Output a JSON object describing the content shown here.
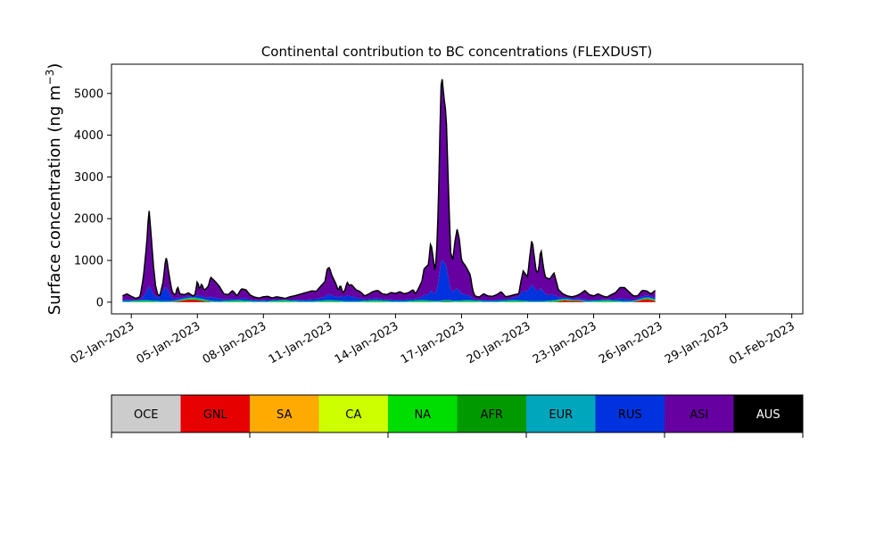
{
  "chart_data": {
    "type": "area",
    "title": "Continental contribution to BC concentrations (FLEXDUST)",
    "ylabel_main": "Surface concentration (ng m",
    "ylabel_sup": "−3",
    "ylabel_close": ")",
    "xlabel": "",
    "ylim": [
      -280,
      5700
    ],
    "yticks": [
      0,
      1000,
      2000,
      3000,
      4000,
      5000
    ],
    "x_start_day": 1.1,
    "x_end_day": 32.5,
    "xticks": [
      {
        "day": 2,
        "label": "02-Jan-2023"
      },
      {
        "day": 5,
        "label": "05-Jan-2023"
      },
      {
        "day": 8,
        "label": "08-Jan-2023"
      },
      {
        "day": 11,
        "label": "11-Jan-2023"
      },
      {
        "day": 14,
        "label": "14-Jan-2023"
      },
      {
        "day": 17,
        "label": "17-Jan-2023"
      },
      {
        "day": 20,
        "label": "20-Jan-2023"
      },
      {
        "day": 23,
        "label": "23-Jan-2023"
      },
      {
        "day": 26,
        "label": "26-Jan-2023"
      },
      {
        "day": 29,
        "label": "29-Jan-2023"
      },
      {
        "day": 32,
        "label": "01-Feb-2023"
      }
    ],
    "total_series": [
      [
        1.6,
        150
      ],
      [
        1.8,
        200
      ],
      [
        2.0,
        140
      ],
      [
        2.2,
        90
      ],
      [
        2.4,
        130
      ],
      [
        2.55,
        600
      ],
      [
        2.7,
        1400
      ],
      [
        2.8,
        2250
      ],
      [
        2.9,
        1600
      ],
      [
        3.0,
        900
      ],
      [
        3.1,
        400
      ],
      [
        3.2,
        180
      ],
      [
        3.3,
        160
      ],
      [
        3.45,
        500
      ],
      [
        3.55,
        1000
      ],
      [
        3.6,
        1080
      ],
      [
        3.7,
        700
      ],
      [
        3.85,
        250
      ],
      [
        4.0,
        160
      ],
      [
        4.1,
        380
      ],
      [
        4.2,
        200
      ],
      [
        4.4,
        180
      ],
      [
        4.6,
        220
      ],
      [
        4.8,
        150
      ],
      [
        4.9,
        180
      ],
      [
        5.0,
        520
      ],
      [
        5.1,
        300
      ],
      [
        5.2,
        450
      ],
      [
        5.3,
        280
      ],
      [
        5.5,
        380
      ],
      [
        5.6,
        600
      ],
      [
        5.8,
        500
      ],
      [
        6.0,
        380
      ],
      [
        6.2,
        200
      ],
      [
        6.4,
        180
      ],
      [
        6.6,
        280
      ],
      [
        6.8,
        150
      ],
      [
        7.0,
        320
      ],
      [
        7.2,
        300
      ],
      [
        7.4,
        170
      ],
      [
        7.6,
        120
      ],
      [
        7.8,
        100
      ],
      [
        8.0,
        130
      ],
      [
        8.2,
        140
      ],
      [
        8.4,
        100
      ],
      [
        8.6,
        130
      ],
      [
        8.8,
        110
      ],
      [
        9.0,
        90
      ],
      [
        9.2,
        130
      ],
      [
        9.4,
        150
      ],
      [
        9.6,
        180
      ],
      [
        9.8,
        210
      ],
      [
        10.0,
        240
      ],
      [
        10.2,
        270
      ],
      [
        10.4,
        260
      ],
      [
        10.6,
        380
      ],
      [
        10.8,
        500
      ],
      [
        10.9,
        800
      ],
      [
        11.0,
        830
      ],
      [
        11.1,
        650
      ],
      [
        11.3,
        430
      ],
      [
        11.4,
        270
      ],
      [
        11.5,
        420
      ],
      [
        11.6,
        220
      ],
      [
        11.7,
        280
      ],
      [
        11.8,
        480
      ],
      [
        11.9,
        400
      ],
      [
        12.0,
        420
      ],
      [
        12.2,
        300
      ],
      [
        12.4,
        250
      ],
      [
        12.6,
        150
      ],
      [
        12.8,
        200
      ],
      [
        13.0,
        260
      ],
      [
        13.2,
        280
      ],
      [
        13.4,
        200
      ],
      [
        13.6,
        180
      ],
      [
        13.8,
        230
      ],
      [
        14.0,
        210
      ],
      [
        14.2,
        250
      ],
      [
        14.4,
        200
      ],
      [
        14.6,
        230
      ],
      [
        14.8,
        300
      ],
      [
        14.9,
        200
      ],
      [
        15.0,
        280
      ],
      [
        15.2,
        500
      ],
      [
        15.3,
        800
      ],
      [
        15.5,
        900
      ],
      [
        15.6,
        1450
      ],
      [
        15.7,
        1100
      ],
      [
        15.8,
        700
      ],
      [
        15.9,
        1500
      ],
      [
        16.0,
        3500
      ],
      [
        16.05,
        5000
      ],
      [
        16.1,
        5450
      ],
      [
        16.2,
        4900
      ],
      [
        16.3,
        4500
      ],
      [
        16.4,
        2800
      ],
      [
        16.5,
        1200
      ],
      [
        16.6,
        1000
      ],
      [
        16.7,
        1450
      ],
      [
        16.8,
        1750
      ],
      [
        16.9,
        1500
      ],
      [
        17.0,
        1000
      ],
      [
        17.2,
        850
      ],
      [
        17.4,
        650
      ],
      [
        17.5,
        300
      ],
      [
        17.6,
        150
      ],
      [
        17.8,
        120
      ],
      [
        18.0,
        200
      ],
      [
        18.2,
        150
      ],
      [
        18.4,
        140
      ],
      [
        18.6,
        180
      ],
      [
        18.8,
        250
      ],
      [
        19.0,
        130
      ],
      [
        19.2,
        150
      ],
      [
        19.4,
        180
      ],
      [
        19.6,
        200
      ],
      [
        19.7,
        500
      ],
      [
        19.8,
        750
      ],
      [
        20.0,
        600
      ],
      [
        20.1,
        1100
      ],
      [
        20.2,
        1520
      ],
      [
        20.3,
        1100
      ],
      [
        20.4,
        700
      ],
      [
        20.5,
        750
      ],
      [
        20.6,
        1300
      ],
      [
        20.7,
        900
      ],
      [
        20.8,
        600
      ],
      [
        21.0,
        550
      ],
      [
        21.2,
        700
      ],
      [
        21.3,
        500
      ],
      [
        21.4,
        300
      ],
      [
        21.6,
        200
      ],
      [
        21.8,
        150
      ],
      [
        22.0,
        130
      ],
      [
        22.2,
        150
      ],
      [
        22.4,
        200
      ],
      [
        22.6,
        280
      ],
      [
        22.8,
        180
      ],
      [
        23.0,
        150
      ],
      [
        23.2,
        200
      ],
      [
        23.4,
        150
      ],
      [
        23.6,
        120
      ],
      [
        23.8,
        180
      ],
      [
        24.0,
        230
      ],
      [
        24.2,
        350
      ],
      [
        24.4,
        350
      ],
      [
        24.6,
        250
      ],
      [
        24.8,
        150
      ],
      [
        25.0,
        150
      ],
      [
        25.2,
        280
      ],
      [
        25.4,
        270
      ],
      [
        25.6,
        200
      ],
      [
        25.8,
        280
      ]
    ],
    "legend": [
      {
        "label": "OCE",
        "color": "#cccccc",
        "text_color": "#000000"
      },
      {
        "label": "GNL",
        "color": "#e60000",
        "text_color": "#000000"
      },
      {
        "label": "SA",
        "color": "#ffaa00",
        "text_color": "#000000"
      },
      {
        "label": "CA",
        "color": "#ccff00",
        "text_color": "#000000"
      },
      {
        "label": "NA",
        "color": "#00dd00",
        "text_color": "#000000"
      },
      {
        "label": "AFR",
        "color": "#009900",
        "text_color": "#000000"
      },
      {
        "label": "EUR",
        "color": "#00a6bb",
        "text_color": "#000000"
      },
      {
        "label": "RUS",
        "color": "#0033dd",
        "text_color": "#000000"
      },
      {
        "label": "ASI",
        "color": "#6600a1",
        "text_color": "#000000"
      },
      {
        "label": "AUS",
        "color": "#000000",
        "text_color": "#ffffff"
      }
    ]
  }
}
